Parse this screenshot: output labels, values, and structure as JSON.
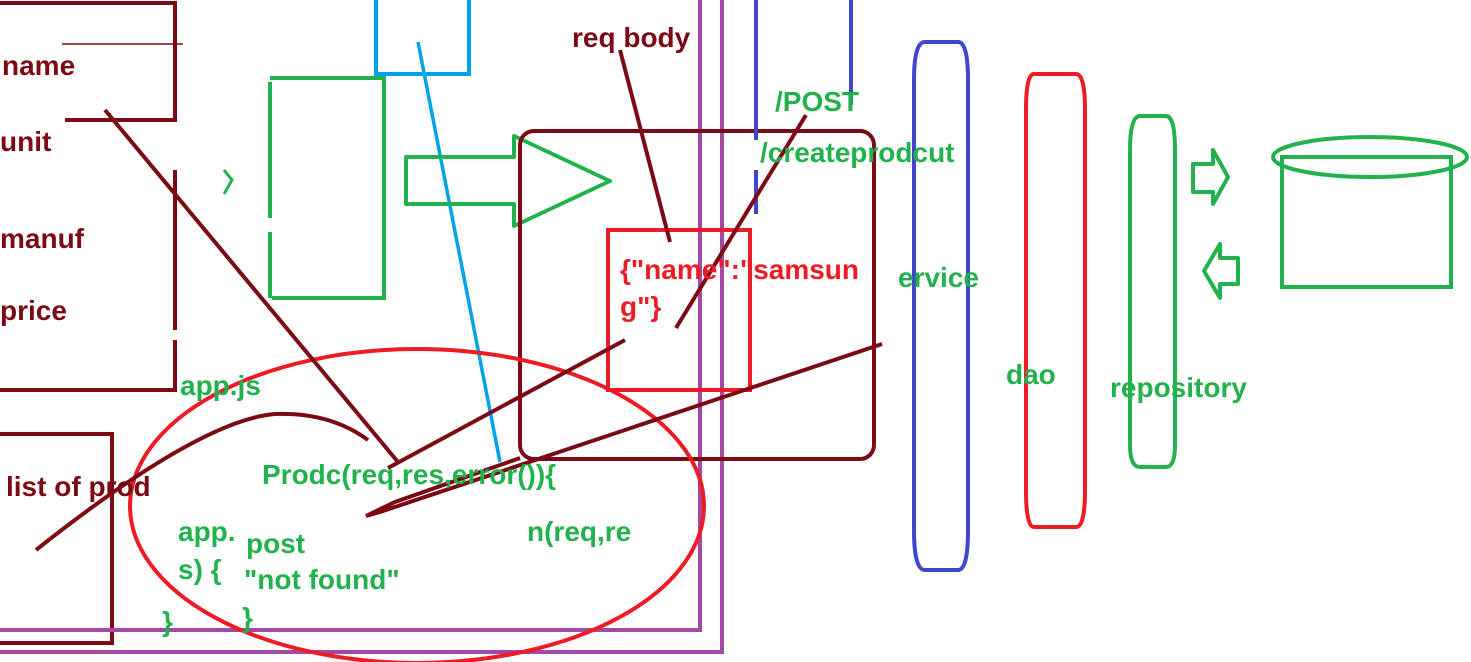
{
  "colors": {
    "maroon": "#7b0a14",
    "green": "#22b14c",
    "red": "#ed1c24",
    "blue": "#3f48cc",
    "cyan": "#00a2e8",
    "purple": "#a349a4"
  },
  "form": {
    "name": "name",
    "unit": "unit",
    "manuf": "manuf",
    "price": "price"
  },
  "list_label": "list of prod",
  "app_label": "app.js",
  "request": {
    "body_label": "req body",
    "method": "/POST",
    "path": "/createprodcut",
    "json_line1": "{\"name\":\"samsun",
    "json_line2": "g\"}"
  },
  "layers": {
    "service": "ervice",
    "dao": "dao",
    "repository": "repository"
  },
  "code": {
    "line1": "Prodc(req,res,error()){",
    "line2a": "app.",
    "line2b": "n(req,re",
    "line3": "s) {",
    "line4": "}",
    "post": "post",
    "not_found": "\"not found\"",
    "close": "}"
  }
}
